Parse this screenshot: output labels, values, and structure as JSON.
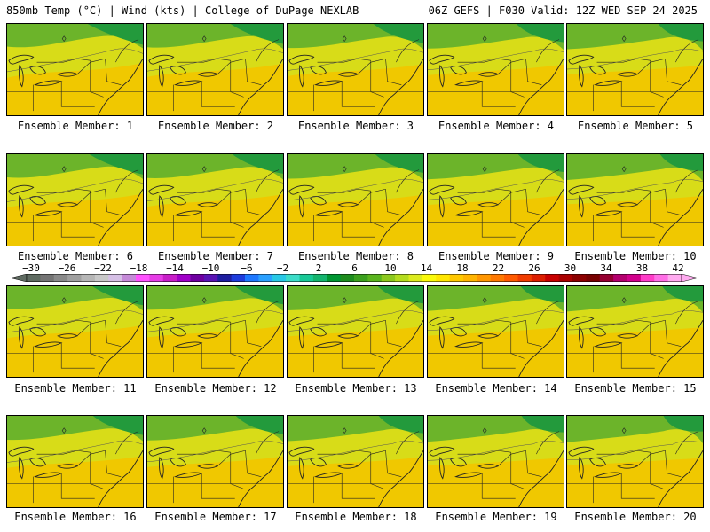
{
  "header": {
    "left": "850mb Temp (°C) | Wind (kts) | College of DuPage NEXLAB",
    "right": "06Z GEFS | F030 Valid: 12Z WED SEP 24 2025"
  },
  "panels": [
    {
      "label": "Ensemble Member: 1"
    },
    {
      "label": "Ensemble Member: 2"
    },
    {
      "label": "Ensemble Member: 3"
    },
    {
      "label": "Ensemble Member: 4"
    },
    {
      "label": "Ensemble Member: 5"
    },
    {
      "label": "Ensemble Member: 6"
    },
    {
      "label": "Ensemble Member: 7"
    },
    {
      "label": "Ensemble Member: 8"
    },
    {
      "label": "Ensemble Member: 9"
    },
    {
      "label": "Ensemble Member: 10"
    },
    {
      "label": "Ensemble Member: 11"
    },
    {
      "label": "Ensemble Member: 12"
    },
    {
      "label": "Ensemble Member: 13"
    },
    {
      "label": "Ensemble Member: 14"
    },
    {
      "label": "Ensemble Member: 15"
    },
    {
      "label": "Ensemble Member: 16"
    },
    {
      "label": "Ensemble Member: 17"
    },
    {
      "label": "Ensemble Member: 18"
    },
    {
      "label": "Ensemble Member: 19"
    },
    {
      "label": "Ensemble Member: 20"
    }
  ],
  "colorbar": {
    "ticks": [
      "−30",
      "−26",
      "−22",
      "−18",
      "−14",
      "−10",
      "−6",
      "−2",
      "2",
      "6",
      "10",
      "14",
      "18",
      "22",
      "26",
      "30",
      "34",
      "38",
      "42"
    ],
    "colors": [
      "#5f6b61",
      "#747474",
      "#8a8a8a",
      "#a0a0a0",
      "#b6b6b6",
      "#c8c8c8",
      "#d6c0e6",
      "#c58ad8",
      "#ff52ff",
      "#e63ce6",
      "#c81ec8",
      "#a000c8",
      "#6e00a0",
      "#5a14b4",
      "#1e1ea0",
      "#1e3cdc",
      "#1e78ff",
      "#2aa0ff",
      "#28c8e6",
      "#3cdcc8",
      "#18c896",
      "#14b46e",
      "#009632",
      "#1e8c1e",
      "#3ca01e",
      "#5ab41e",
      "#8cc81e",
      "#b4dc1e",
      "#dceb1e",
      "#fafa0a",
      "#ffe600",
      "#ffc800",
      "#ffb400",
      "#ff9600",
      "#ff7800",
      "#ff5a00",
      "#f03c00",
      "#dc1e00",
      "#c80000",
      "#aa0000",
      "#8c0000",
      "#780000",
      "#960032",
      "#b4006e",
      "#d2008c",
      "#ff3cc8",
      "#ff6ee6",
      "#ffaaf0"
    ]
  },
  "theme": {
    "warm": "#f0c800",
    "mid": "#d8dc18",
    "cool": "#6cb42a",
    "coldest": "#239a3c",
    "boundary": "#222222"
  }
}
